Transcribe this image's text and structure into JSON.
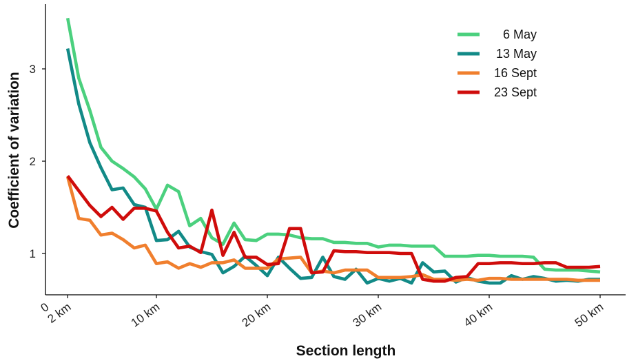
{
  "chart_data": {
    "type": "line",
    "xlabel": "Section length",
    "ylabel": "Coefficient of variation",
    "xlim": [
      0,
      52
    ],
    "ylim": [
      0.55,
      3.7
    ],
    "x_ticks": [
      {
        "value": 0,
        "label": "0"
      },
      {
        "value": 2,
        "label": "2 km"
      },
      {
        "value": 10,
        "label": "10 km"
      },
      {
        "value": 20,
        "label": "20 km"
      },
      {
        "value": 30,
        "label": "30 km"
      },
      {
        "value": 40,
        "label": "40 km"
      },
      {
        "value": 50,
        "label": "50 km"
      }
    ],
    "y_ticks": [
      {
        "value": 1,
        "label": "1"
      },
      {
        "value": 2,
        "label": "2"
      },
      {
        "value": 3,
        "label": "3"
      }
    ],
    "grid": false,
    "legend_position": "top-right",
    "x": [
      2,
      3,
      4,
      5,
      6,
      7,
      8,
      9,
      10,
      11,
      12,
      13,
      14,
      15,
      16,
      17,
      18,
      19,
      20,
      21,
      22,
      23,
      24,
      25,
      26,
      27,
      28,
      29,
      30,
      31,
      32,
      33,
      34,
      35,
      36,
      37,
      38,
      39,
      40,
      41,
      42,
      43,
      44,
      45,
      46,
      47,
      48,
      49,
      50
    ],
    "series": [
      {
        "name": "6 May",
        "color": "#4bd07e",
        "values": [
          3.55,
          2.9,
          2.55,
          2.15,
          2.0,
          1.92,
          1.83,
          1.7,
          1.48,
          1.74,
          1.67,
          1.3,
          1.38,
          1.17,
          1.1,
          1.33,
          1.15,
          1.14,
          1.21,
          1.21,
          1.2,
          1.17,
          1.16,
          1.16,
          1.12,
          1.12,
          1.11,
          1.11,
          1.07,
          1.09,
          1.09,
          1.08,
          1.08,
          1.08,
          0.97,
          0.97,
          0.97,
          0.98,
          0.98,
          0.97,
          0.97,
          0.97,
          0.96,
          0.83,
          0.82,
          0.82,
          0.82,
          0.81,
          0.8
        ]
      },
      {
        "name": "13 May",
        "color": "#128a87",
        "values": [
          3.22,
          2.62,
          2.2,
          1.93,
          1.69,
          1.71,
          1.53,
          1.5,
          1.14,
          1.15,
          1.24,
          1.07,
          1.02,
          0.99,
          0.79,
          0.86,
          0.97,
          0.87,
          0.76,
          0.96,
          0.84,
          0.73,
          0.74,
          0.96,
          0.75,
          0.72,
          0.83,
          0.68,
          0.73,
          0.7,
          0.73,
          0.68,
          0.9,
          0.8,
          0.81,
          0.69,
          0.74,
          0.7,
          0.68,
          0.68,
          0.76,
          0.72,
          0.75,
          0.73,
          0.7,
          0.71,
          0.7,
          0.72,
          0.72
        ]
      },
      {
        "name": "16 Sept",
        "color": "#f07f2e",
        "values": [
          1.83,
          1.38,
          1.36,
          1.2,
          1.22,
          1.15,
          1.06,
          1.09,
          0.89,
          0.91,
          0.84,
          0.89,
          0.85,
          0.9,
          0.9,
          0.93,
          0.84,
          0.84,
          0.84,
          0.94,
          0.95,
          0.96,
          0.79,
          0.81,
          0.79,
          0.82,
          0.82,
          0.82,
          0.74,
          0.74,
          0.74,
          0.75,
          0.77,
          0.72,
          0.72,
          0.71,
          0.72,
          0.71,
          0.73,
          0.73,
          0.72,
          0.72,
          0.72,
          0.72,
          0.72,
          0.72,
          0.71,
          0.71,
          0.71
        ]
      },
      {
        "name": "23 Sept",
        "color": "#cf0c0b",
        "values": [
          1.84,
          1.68,
          1.52,
          1.4,
          1.5,
          1.37,
          1.49,
          1.49,
          1.46,
          1.23,
          1.06,
          1.08,
          1.01,
          1.47,
          0.98,
          1.23,
          0.96,
          0.96,
          0.88,
          0.89,
          1.27,
          1.27,
          0.79,
          0.8,
          1.03,
          1.02,
          1.02,
          1.01,
          1.01,
          1.01,
          1.0,
          1.0,
          0.72,
          0.7,
          0.7,
          0.74,
          0.75,
          0.89,
          0.89,
          0.9,
          0.9,
          0.89,
          0.89,
          0.9,
          0.9,
          0.85,
          0.85,
          0.85,
          0.86
        ]
      }
    ]
  }
}
